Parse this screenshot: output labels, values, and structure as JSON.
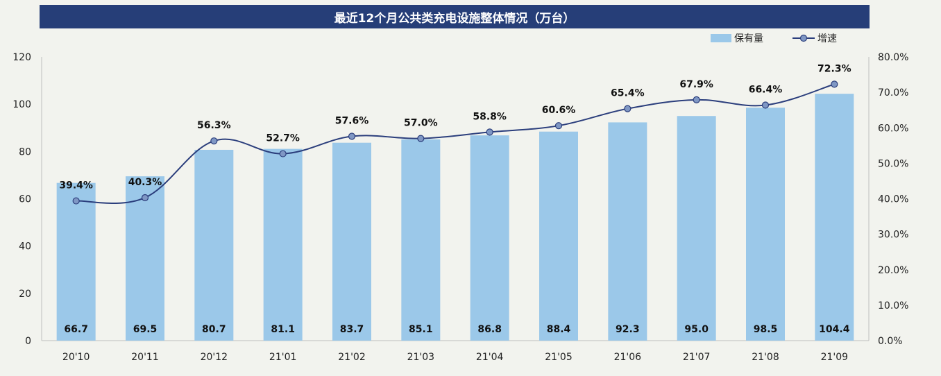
{
  "header": {
    "title": "最近12个月公共类充电设施整体情况（万台）"
  },
  "colors": {
    "bar": "#9bc8e9",
    "line": "#2b3e7c",
    "marker": "#7f97c4",
    "title_bg": "#263e78"
  },
  "chart_data": {
    "type": "bar+line",
    "title": "最近12个月公共类充电设施整体情况（万台）",
    "categories": [
      "20'10",
      "20'11",
      "20'12",
      "21'01",
      "21'02",
      "21'03",
      "21'04",
      "21'05",
      "21'06",
      "21'07",
      "21'08",
      "21'09"
    ],
    "series": [
      {
        "name": "保有量",
        "type": "bar",
        "axis": "left",
        "values": [
          66.7,
          69.5,
          80.7,
          81.1,
          83.7,
          85.1,
          86.8,
          88.4,
          92.3,
          95.0,
          98.5,
          104.4
        ],
        "labels": [
          "66.7",
          "69.5",
          "80.7",
          "81.1",
          "83.7",
          "85.1",
          "86.8",
          "88.4",
          "92.3",
          "95.0",
          "98.5",
          "104.4"
        ]
      },
      {
        "name": "增速",
        "type": "line",
        "axis": "right",
        "values": [
          39.4,
          40.3,
          56.3,
          52.7,
          57.6,
          57.0,
          58.8,
          60.6,
          65.4,
          67.9,
          66.4,
          72.3
        ],
        "labels": [
          "39.4%",
          "40.3%",
          "56.3%",
          "52.7%",
          "57.6%",
          "57.0%",
          "58.8%",
          "60.6%",
          "65.4%",
          "67.9%",
          "66.4%",
          "72.3%"
        ]
      }
    ],
    "y_left": {
      "range": [
        0,
        120
      ],
      "ticks": [
        "0",
        "20",
        "40",
        "60",
        "80",
        "100",
        "120"
      ]
    },
    "y_right": {
      "range": [
        0,
        80
      ],
      "ticks": [
        "0.0%",
        "10.0%",
        "20.0%",
        "30.0%",
        "40.0%",
        "50.0%",
        "60.0%",
        "70.0%",
        "80.0%"
      ]
    },
    "legend": {
      "placement": "top-right",
      "entries": [
        "保有量",
        "增速"
      ]
    },
    "grid": false
  }
}
